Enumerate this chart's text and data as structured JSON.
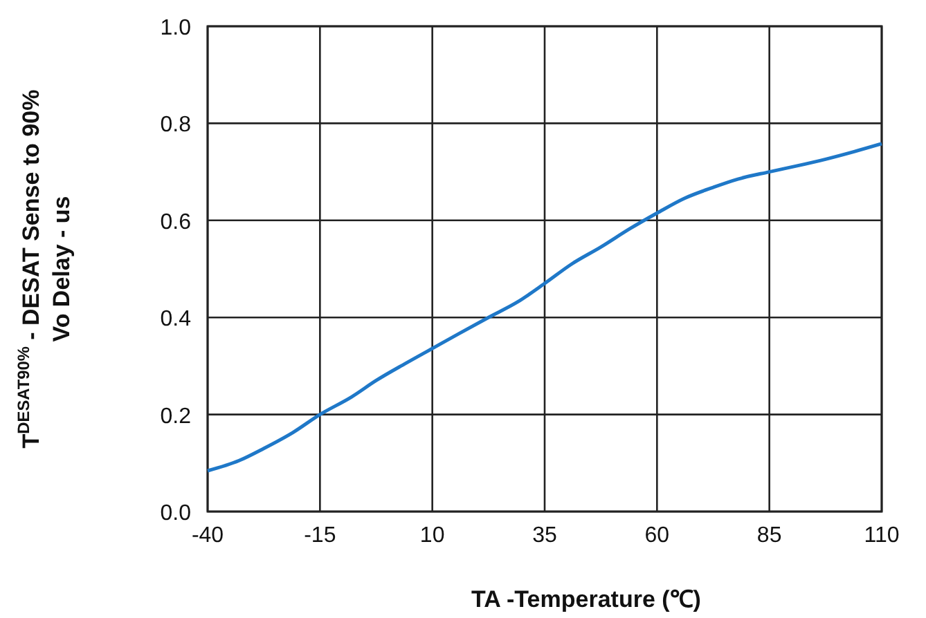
{
  "chart_data": {
    "type": "line",
    "xlabel": "TA -Temperature (℃)",
    "ylabel": "T$^{DESAT90%}$ - DESAT Sense to 90%\nVo Delay - us",
    "x": [
      -40,
      -33,
      -27.5,
      -21,
      -15,
      -8,
      -2.5,
      4,
      10,
      16,
      22.5,
      29,
      35,
      41,
      47.5,
      54,
      60,
      66,
      72.5,
      78,
      85,
      91,
      97.5,
      104,
      110
    ],
    "series": [
      {
        "color": "#1f78c8",
        "values": [
          0.084,
          0.105,
          0.13,
          0.163,
          0.2,
          0.236,
          0.27,
          0.305,
          0.336,
          0.367,
          0.4,
          0.432,
          0.47,
          0.51,
          0.545,
          0.583,
          0.615,
          0.645,
          0.668,
          0.685,
          0.7,
          0.712,
          0.726,
          0.742,
          0.758
        ]
      }
    ],
    "xlim": [
      -40,
      110
    ],
    "xticks": [
      -40,
      -15,
      10,
      35,
      60,
      85,
      110
    ],
    "ylim": [
      0,
      1
    ],
    "yticks": [
      {
        "value": 0,
        "label": "0.0"
      },
      0.2,
      0.4,
      0.6,
      0.8,
      {
        "value": 1,
        "label": "1.0"
      }
    ],
    "grid": true,
    "marker": "none",
    "line_style": "solid"
  }
}
